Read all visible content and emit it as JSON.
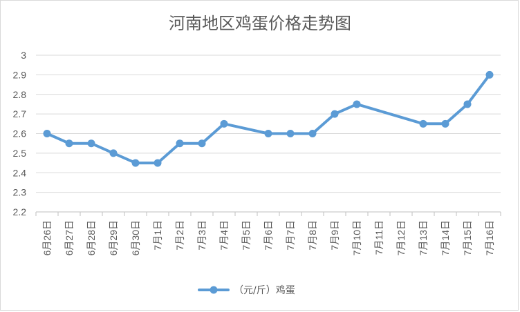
{
  "chart_data": {
    "type": "line",
    "title": "河南地区鸡蛋价格走势图",
    "categories": [
      "6月26日",
      "6月27日",
      "6月28日",
      "6月29日",
      "6月30日",
      "7月1日",
      "7月2日",
      "7月3日",
      "7月4日",
      "7月5日",
      "7月6日",
      "7月7日",
      "7月8日",
      "7月9日",
      "7月10日",
      "7月11日",
      "7月12日",
      "7月13日",
      "7月14日",
      "7月15日",
      "7月16日"
    ],
    "series": [
      {
        "name": "（元/斤）鸡蛋",
        "color": "#5b9bd5",
        "values": [
          2.6,
          2.55,
          2.55,
          2.5,
          2.45,
          2.45,
          2.55,
          2.55,
          2.65,
          null,
          2.6,
          2.6,
          2.6,
          2.7,
          2.75,
          null,
          null,
          2.65,
          2.65,
          2.75,
          2.9
        ]
      }
    ],
    "yticks": [
      "2.2",
      "2.3",
      "2.4",
      "2.5",
      "2.6",
      "2.7",
      "2.8",
      "2.9",
      "3"
    ],
    "ylim": [
      2.2,
      3.0
    ],
    "grid": true,
    "legend": "bottom",
    "xlabel": "",
    "ylabel": ""
  }
}
